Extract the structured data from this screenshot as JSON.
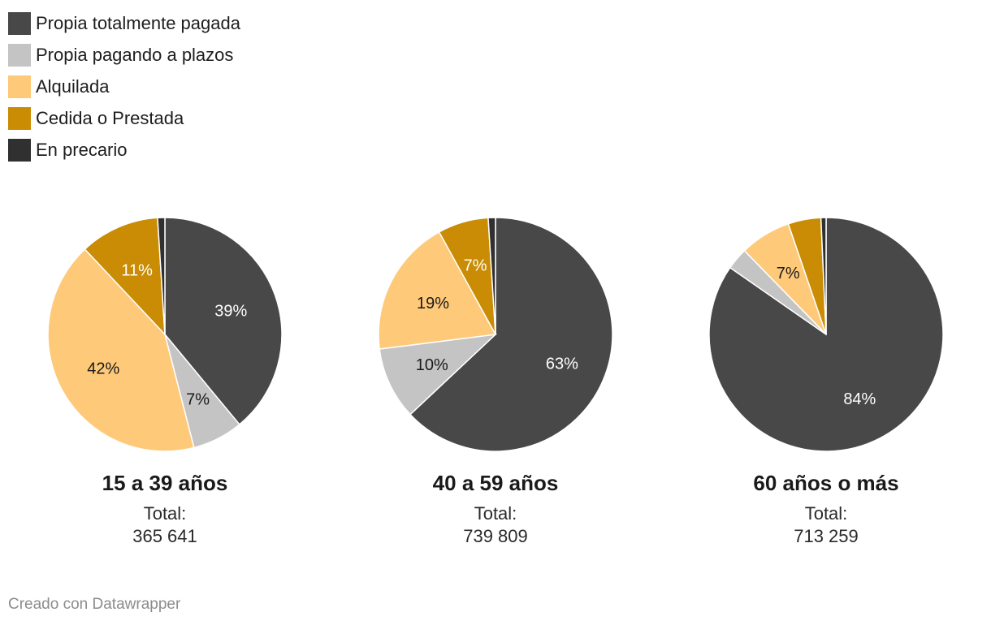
{
  "legend": [
    {
      "label": "Propia totalmente pagada",
      "color": "#484848"
    },
    {
      "label": "Propia pagando a plazos",
      "color": "#c4c4c4"
    },
    {
      "label": "Alquilada",
      "color": "#fec979"
    },
    {
      "label": "Cedida o Prestada",
      "color": "#c98c04"
    },
    {
      "label": "En precario",
      "color": "#303030"
    }
  ],
  "chart_data": [
    {
      "type": "pie",
      "title": "15 a 39 años",
      "total_label": "Total:",
      "total_value": "365 641",
      "slices": [
        {
          "name": "Propia totalmente pagada",
          "value": 39,
          "label": "39%"
        },
        {
          "name": "Propia pagando a plazos",
          "value": 7,
          "label": "7%"
        },
        {
          "name": "Alquilada",
          "value": 42,
          "label": "42%"
        },
        {
          "name": "Cedida o Prestada",
          "value": 11,
          "label": "11%"
        },
        {
          "name": "En precario",
          "value": 1,
          "label": ""
        }
      ]
    },
    {
      "type": "pie",
      "title": "40 a 59 años",
      "total_label": "Total:",
      "total_value": "739 809",
      "slices": [
        {
          "name": "Propia totalmente pagada",
          "value": 63,
          "label": "63%"
        },
        {
          "name": "Propia pagando a plazos",
          "value": 10,
          "label": "10%"
        },
        {
          "name": "Alquilada",
          "value": 19,
          "label": "19%"
        },
        {
          "name": "Cedida o Prestada",
          "value": 7,
          "label": "7%"
        },
        {
          "name": "En precario",
          "value": 1,
          "label": ""
        }
      ]
    },
    {
      "type": "pie",
      "title": "60 años o más",
      "total_label": "Total:",
      "total_value": "713 259",
      "slices": [
        {
          "name": "Propia totalmente pagada",
          "value": 84,
          "label": "84%"
        },
        {
          "name": "Propia pagando a plazos",
          "value": 3,
          "label": ""
        },
        {
          "name": "Alquilada",
          "value": 7,
          "label": "7%"
        },
        {
          "name": "Cedida o Prestada",
          "value": 4.5,
          "label": ""
        },
        {
          "name": "En precario",
          "value": 0.7,
          "label": ""
        }
      ]
    }
  ],
  "credit": "Creado con Datawrapper"
}
